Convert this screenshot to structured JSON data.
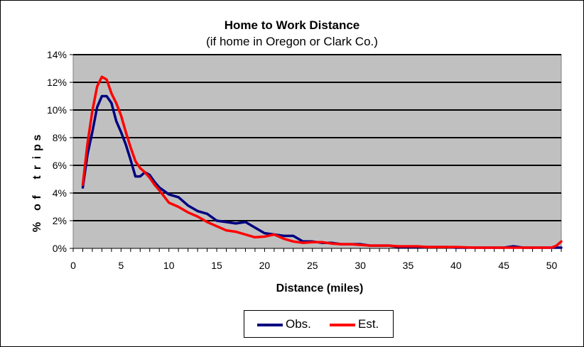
{
  "chart_data": {
    "type": "line",
    "title": "Home to Work Distance",
    "subtitle": "(if home in Oregon or Clark Co.)",
    "xlabel": "Distance (miles)",
    "ylabel": "% of trips",
    "xlim": [
      0,
      51
    ],
    "ylim": [
      0,
      14
    ],
    "x_ticks": [
      "0",
      "5",
      "10",
      "15",
      "20",
      "25",
      "30",
      "35",
      "40",
      "45",
      "50"
    ],
    "y_ticks": [
      "0%",
      "2%",
      "4%",
      "6%",
      "8%",
      "10%",
      "12%",
      "14%"
    ],
    "grid": true,
    "plot_background": "#c0c0c0",
    "legend_position": "bottom",
    "series": [
      {
        "name": "Obs.",
        "color": "#000080",
        "x": [
          1,
          1.5,
          2,
          2.5,
          3,
          3.5,
          4,
          4.5,
          5,
          5.5,
          6,
          6.5,
          7,
          7.5,
          8,
          8.5,
          9,
          10,
          11,
          12,
          13,
          14,
          15,
          16,
          17,
          18,
          19,
          20,
          21,
          22,
          23,
          24,
          25,
          26,
          27,
          28,
          29,
          30,
          31,
          32,
          33,
          34,
          35,
          36,
          37,
          38,
          39,
          40,
          42,
          44,
          45,
          46,
          47,
          48,
          49,
          50,
          51
        ],
        "values": [
          4.4,
          6.8,
          8.4,
          10.2,
          11.0,
          11.0,
          10.5,
          9.2,
          8.4,
          7.5,
          6.4,
          5.2,
          5.2,
          5.5,
          5.3,
          4.8,
          4.4,
          3.9,
          3.7,
          3.1,
          2.7,
          2.5,
          2.0,
          1.9,
          1.8,
          1.9,
          1.5,
          1.1,
          1.0,
          0.9,
          0.9,
          0.5,
          0.5,
          0.4,
          0.4,
          0.3,
          0.3,
          0.3,
          0.2,
          0.2,
          0.2,
          0.1,
          0.1,
          0.1,
          0.1,
          0.1,
          0.1,
          0.05,
          0.05,
          0.05,
          0.05,
          0.15,
          0.05,
          0.05,
          0.05,
          0.05,
          0.05
        ]
      },
      {
        "name": "Est.",
        "color": "#ff0000",
        "x": [
          1,
          1.5,
          2,
          2.5,
          3,
          3.5,
          4,
          4.5,
          5,
          5.5,
          6,
          6.5,
          7,
          7.5,
          8,
          8.5,
          9,
          10,
          11,
          12,
          13,
          14,
          15,
          16,
          17,
          18,
          19,
          20,
          21,
          22,
          23,
          24,
          25,
          26,
          27,
          28,
          29,
          30,
          31,
          32,
          33,
          34,
          35,
          36,
          37,
          38,
          39,
          40,
          42,
          44,
          46,
          48,
          50,
          50.5,
          51
        ],
        "values": [
          4.6,
          7.6,
          9.9,
          11.7,
          12.4,
          12.2,
          11.2,
          10.5,
          9.6,
          8.4,
          7.3,
          6.3,
          5.8,
          5.5,
          5.1,
          4.6,
          4.2,
          3.3,
          3.0,
          2.6,
          2.3,
          1.9,
          1.6,
          1.3,
          1.2,
          1.0,
          0.8,
          0.85,
          1.0,
          0.7,
          0.5,
          0.4,
          0.45,
          0.45,
          0.35,
          0.3,
          0.3,
          0.25,
          0.2,
          0.2,
          0.2,
          0.15,
          0.15,
          0.15,
          0.1,
          0.1,
          0.1,
          0.1,
          0.05,
          0.05,
          0.05,
          0.05,
          0.05,
          0.2,
          0.5
        ]
      }
    ]
  }
}
